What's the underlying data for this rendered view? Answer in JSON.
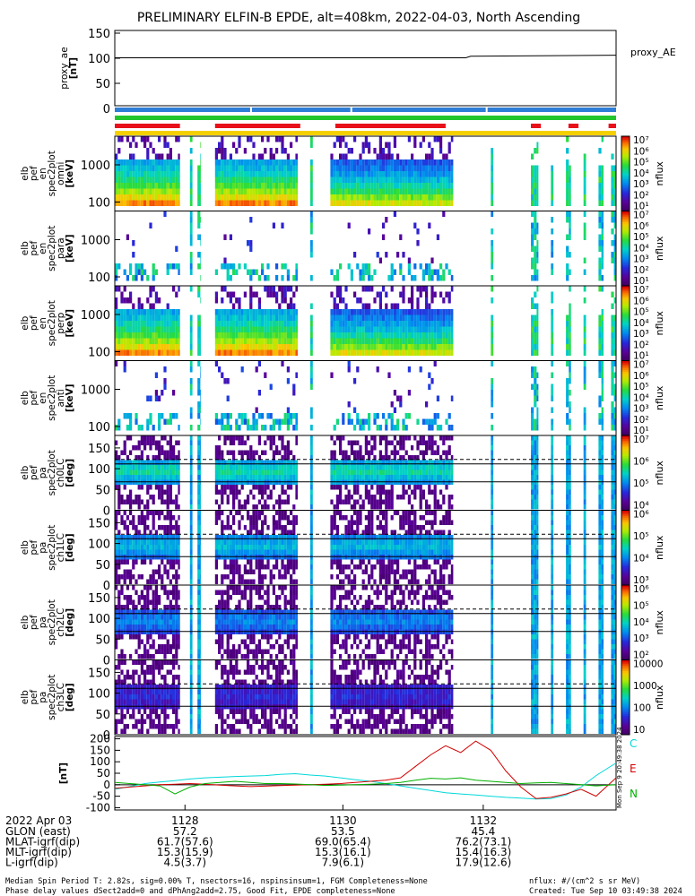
{
  "title": "PRELIMINARY ELFIN-B EPDE, alt=408km, 2022-04-03, North Ascending",
  "colors": {
    "bar_blue": "#2e7dd6",
    "bar_green": "#22c52c",
    "bar_red": "#e8101a",
    "bar_yellow": "#f5d000",
    "trace_C": "#00d8d8",
    "trace_E": "#d40000",
    "trace_N": "#00b000"
  },
  "chart_data": [
    {
      "type": "line",
      "name": "proxy_ae",
      "ylabel_lines": [
        "proxy_ae",
        "[nT]"
      ],
      "legend": "proxy_AE",
      "ylim": [
        0,
        150
      ],
      "yticks": [
        "0",
        "50",
        "100",
        "150"
      ],
      "series": [
        {
          "name": "proxy_AE",
          "x": [
            0,
            0.7,
            0.71,
            1.0
          ],
          "y": [
            101,
            101,
            104,
            106
          ]
        }
      ]
    },
    {
      "type": "heatmap",
      "panels": [
        {
          "id": "en_all",
          "ylabel_lines": [
            "elb",
            "pef",
            "en",
            "spec2plot",
            "omni",
            "[keV]"
          ],
          "yticks": [
            "100",
            "1000"
          ],
          "kind": "energy",
          "intensity": 1.0,
          "cbar_ticks": [
            "10¹",
            "10²",
            "10³",
            "10⁴",
            "10⁵",
            "10⁶",
            "10⁷"
          ],
          "cbar_label": "nflux"
        },
        {
          "id": "en_para",
          "ylabel_lines": [
            "elb",
            "pef",
            "en",
            "spec2plot",
            "para",
            "[keV]"
          ],
          "yticks": [
            "100",
            "1000"
          ],
          "kind": "energy_sparse",
          "intensity": 0.35,
          "cbar_ticks": [
            "10¹",
            "10²",
            "10³",
            "10⁴",
            "10⁵",
            "10⁶",
            "10⁷"
          ],
          "cbar_label": "nflux"
        },
        {
          "id": "en_perp",
          "ylabel_lines": [
            "elb",
            "pef",
            "en",
            "spec2plot",
            "perp",
            "[keV]"
          ],
          "yticks": [
            "100",
            "1000"
          ],
          "kind": "energy",
          "intensity": 1.0,
          "cbar_ticks": [
            "10¹",
            "10²",
            "10³",
            "10⁴",
            "10⁵",
            "10⁶",
            "10⁷"
          ],
          "cbar_label": "nflux"
        },
        {
          "id": "en_anti",
          "ylabel_lines": [
            "elb",
            "pef",
            "en",
            "spec2plot",
            "anti",
            "[keV]"
          ],
          "yticks": [
            "100",
            "1000"
          ],
          "kind": "energy_sparse",
          "intensity": 0.45,
          "cbar_ticks": [
            "10¹",
            "10²",
            "10³",
            "10⁴",
            "10⁵",
            "10⁶",
            "10⁷"
          ],
          "cbar_label": "nflux"
        },
        {
          "id": "pa_ch0",
          "ylabel_lines": [
            "elb",
            "pef",
            "pa",
            "spec2plot",
            "ch0LC",
            "[deg]"
          ],
          "yticks": [
            "0",
            "50",
            "100",
            "150"
          ],
          "kind": "pa",
          "intensity": 1.0,
          "cbar_ticks": [
            "10⁴",
            "10⁵",
            "10⁶",
            "10⁷"
          ],
          "cbar_label": "nflux"
        },
        {
          "id": "pa_ch1",
          "ylabel_lines": [
            "elb",
            "pef",
            "pa",
            "spec2plot",
            "ch1LC",
            "[deg]"
          ],
          "yticks": [
            "0",
            "50",
            "100",
            "150"
          ],
          "kind": "pa",
          "intensity": 0.85,
          "cbar_ticks": [
            "10³",
            "10⁴",
            "10⁵",
            "10⁶"
          ],
          "cbar_label": "nflux"
        },
        {
          "id": "pa_ch2",
          "ylabel_lines": [
            "elb",
            "pef",
            "pa",
            "spec2plot",
            "ch2LC",
            "[deg]"
          ],
          "yticks": [
            "0",
            "50",
            "100",
            "150"
          ],
          "kind": "pa",
          "intensity": 0.7,
          "cbar_ticks": [
            "10²",
            "10³",
            "10⁴",
            "10⁵",
            "10⁶"
          ],
          "cbar_label": "nflux"
        },
        {
          "id": "pa_ch3",
          "ylabel_lines": [
            "elb",
            "pef",
            "pa",
            "spec2plot",
            "ch3LC",
            "[deg]"
          ],
          "yticks": [
            "0",
            "50",
            "100",
            "150"
          ],
          "kind": "pa",
          "intensity": 0.45,
          "cbar_ticks": [
            "10",
            "100",
            "1000",
            "10000"
          ],
          "cbar_label": "nflux"
        }
      ]
    },
    {
      "type": "line",
      "name": "fgm",
      "ylabel_lines": [
        "[nT]"
      ],
      "ylim": [
        -110,
        210
      ],
      "yticks": [
        "-100",
        "-50",
        "0",
        "50",
        "100",
        "150",
        "200"
      ],
      "legend": [
        "C",
        "E",
        "N"
      ],
      "x": [
        0,
        0.03,
        0.06,
        0.09,
        0.12,
        0.15,
        0.18,
        0.21,
        0.24,
        0.27,
        0.3,
        0.33,
        0.36,
        0.39,
        0.42,
        0.45,
        0.48,
        0.51,
        0.54,
        0.57,
        0.6,
        0.63,
        0.66,
        0.69,
        0.72,
        0.75,
        0.78,
        0.81,
        0.84,
        0.87,
        0.9,
        0.93,
        0.96,
        1.0
      ],
      "series": [
        {
          "name": "C",
          "y": [
            -20,
            -8,
            5,
            12,
            18,
            25,
            30,
            33,
            36,
            38,
            40,
            45,
            48,
            42,
            38,
            30,
            22,
            15,
            5,
            -5,
            -15,
            -25,
            -35,
            -40,
            -45,
            -50,
            -55,
            -58,
            -62,
            -60,
            -45,
            -10,
            40,
            95
          ]
        },
        {
          "name": "E",
          "y": [
            -15,
            -10,
            -5,
            0,
            2,
            5,
            2,
            -2,
            -5,
            -8,
            -6,
            -4,
            -2,
            0,
            2,
            5,
            10,
            15,
            20,
            30,
            80,
            130,
            170,
            140,
            190,
            150,
            60,
            -10,
            -60,
            -55,
            -40,
            -20,
            -50,
            30
          ]
        },
        {
          "name": "N",
          "y": [
            10,
            5,
            0,
            -5,
            -40,
            -10,
            5,
            10,
            15,
            10,
            5,
            5,
            3,
            0,
            -3,
            -2,
            0,
            2,
            5,
            10,
            20,
            28,
            25,
            30,
            20,
            15,
            10,
            5,
            8,
            10,
            5,
            0,
            -5,
            0
          ]
        }
      ]
    }
  ],
  "time_axis": {
    "ticks": [
      "1128",
      "1130",
      "1132"
    ],
    "date_label": "2022 Apr 03",
    "rows": [
      {
        "label": "GLON (east)",
        "values": [
          "57.2",
          "53.5",
          "45.4"
        ]
      },
      {
        "label": "MLAT-igrf(dip)",
        "values": [
          "61.7(57.6)",
          "69.0(65.4)",
          "76.2(73.1)"
        ]
      },
      {
        "label": "MLT-igrf(dip)",
        "values": [
          "15.3(15.9)",
          "15.3(16.1)",
          "15.4(16.3)"
        ]
      },
      {
        "label": "L-igrf(dip)",
        "values": [
          "4.5(3.7)",
          "7.9(6.1)",
          "17.9(12.6)"
        ]
      }
    ]
  },
  "footer": {
    "line1": "Median Spin Period T: 2.82s, sig=0.00% T, nsectors=16, nspinsinsum=1, FGM Completeness=None",
    "line2": "Phase delay values dSect2add=0 and dPhAng2add=2.75, Good Fit, EPDE completeness=None",
    "units": "nflux: #/(cm^2 s sr MeV)",
    "created": "Created: Tue Sep 10 03:49:38 2024",
    "side_stamp": "Mon Sep  9 20:49:38 2024"
  }
}
